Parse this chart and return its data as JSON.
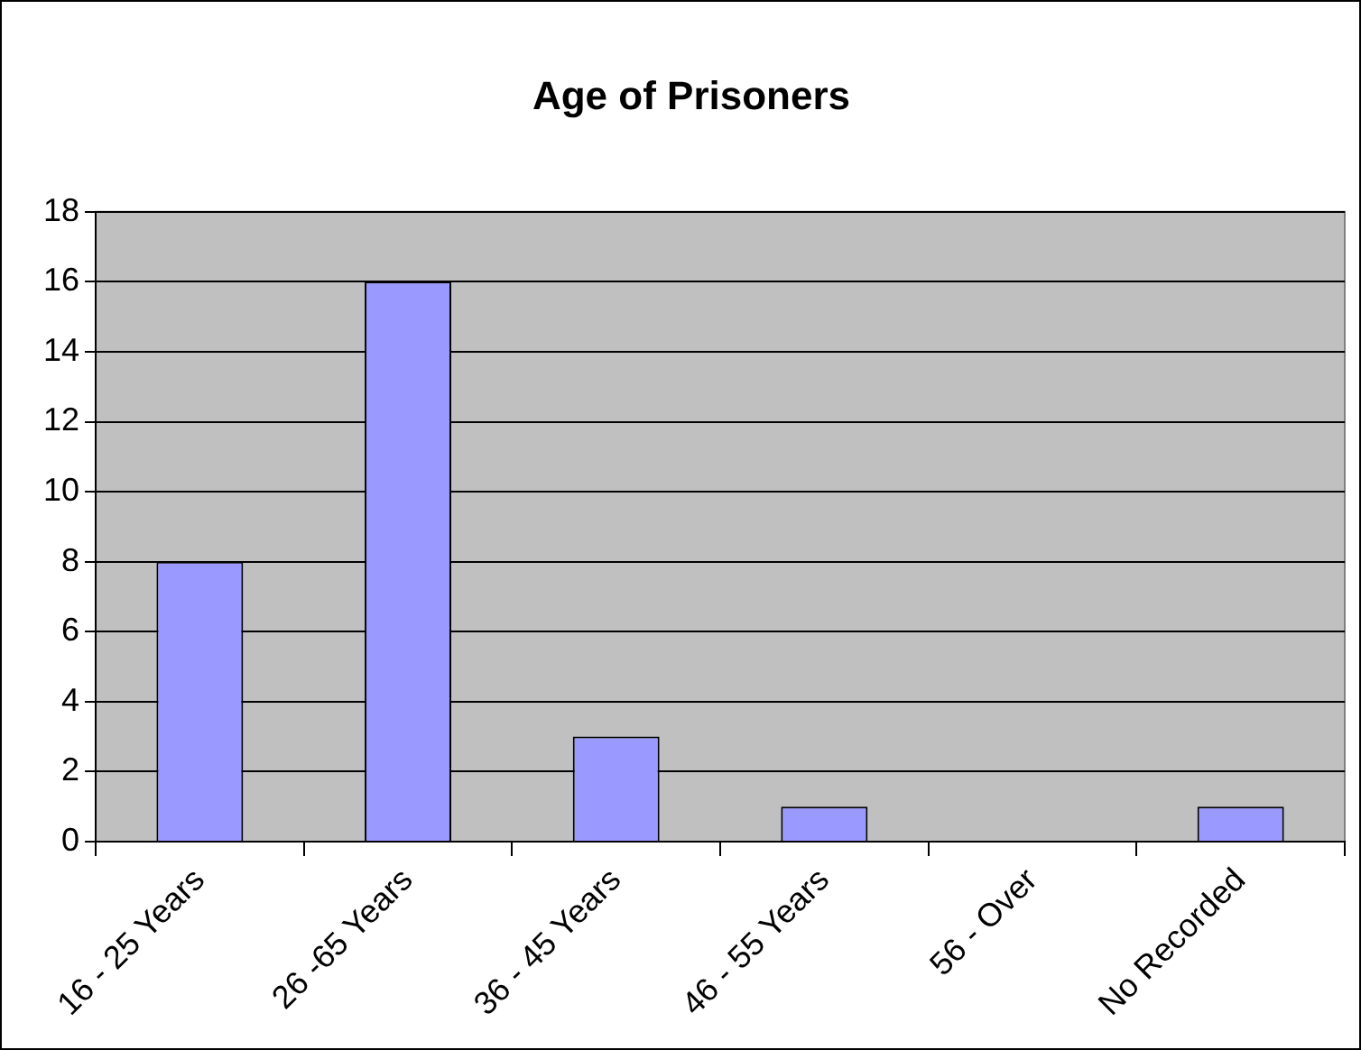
{
  "chart_data": {
    "type": "bar",
    "title": "Age of Prisoners",
    "categories": [
      "16 - 25 Years",
      "26 -65 Years",
      "36 - 45 Years",
      "46 - 55 Years",
      "56 - Over",
      "No Recorded"
    ],
    "values": [
      8,
      16,
      3,
      1,
      0,
      1
    ],
    "color": "#9999ff",
    "ylim": [
      0,
      18
    ],
    "yticks": [
      0,
      2,
      4,
      6,
      8,
      10,
      12,
      14,
      16,
      18
    ],
    "grid": "y",
    "legend": false
  }
}
